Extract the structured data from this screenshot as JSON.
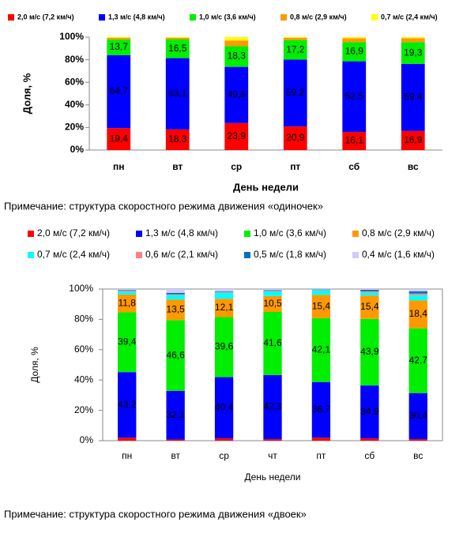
{
  "chart_data": [
    {
      "type": "stacked-bar",
      "ylabel": "Доля, %",
      "xlabel": "День недели",
      "caption": "Примечание: структура скоростного режима движения «одиночек»",
      "categories": [
        "пн",
        "вт",
        "ср",
        "пт",
        "сб",
        "вс"
      ],
      "ylim": [
        0,
        100
      ],
      "yticks": [
        {
          "value": 0,
          "label": "0%"
        },
        {
          "value": 20,
          "label": "20%"
        },
        {
          "value": 40,
          "label": "40%"
        },
        {
          "value": 60,
          "label": "60%"
        },
        {
          "value": 80,
          "label": "80%"
        },
        {
          "value": 100,
          "label": "100%"
        }
      ],
      "grid": false,
      "legend": "top",
      "series": [
        {
          "name": "2,0 м/с (7,2 км/ч)",
          "color": "#ff0000",
          "values": [
            19.4,
            18.3,
            23.9,
            20.9,
            16.1,
            16.9
          ],
          "value_labels": [
            "19,4",
            "18,3",
            "23,9",
            "20,9",
            "16,1",
            "16,9"
          ]
        },
        {
          "name": "1,3 м/с (4,8 км/ч)",
          "color": "#0000ff",
          "values": [
            64.7,
            63.1,
            49.8,
            59.2,
            62.5,
            59.4
          ],
          "value_labels": [
            "64,7",
            "63,1",
            "49,8",
            "59,2",
            "62,5",
            "59,4"
          ]
        },
        {
          "name": "1,0 м/с (3,6 км/ч)",
          "color": "#00ee00",
          "values": [
            13.7,
            16.5,
            18.3,
            17.2,
            16.9,
            19.3
          ],
          "value_labels": [
            "13,7",
            "16,5",
            "18,3",
            "17,2",
            "16,9",
            "19,3"
          ]
        },
        {
          "name": "0,8 м/с (2,9 км/ч)",
          "color": "#ff9900",
          "values": [
            1.5,
            1.5,
            5.0,
            2.0,
            3.5,
            3.5
          ]
        },
        {
          "name": "0,7 м/с (2,4 км/ч)",
          "color": "#ffff00",
          "values": [
            0.7,
            0.6,
            3.0,
            0.7,
            1.0,
            0.9
          ]
        }
      ]
    },
    {
      "type": "stacked-bar",
      "ylabel": "Доля, %",
      "xlabel": "День недели",
      "caption": "Примечание: структура скоростного режима движения «двоек»",
      "categories": [
        "пн",
        "вт",
        "ср",
        "чт",
        "пт",
        "сб",
        "вс"
      ],
      "ylim": [
        0,
        100
      ],
      "yticks": [
        {
          "value": 0,
          "label": "0%"
        },
        {
          "value": 20,
          "label": "20%"
        },
        {
          "value": 40,
          "label": "40%"
        },
        {
          "value": 60,
          "label": "60%"
        },
        {
          "value": 80,
          "label": "80%"
        },
        {
          "value": 100,
          "label": "100%"
        }
      ],
      "grid": false,
      "legend": "top",
      "series": [
        {
          "name": "2,0 м/с (7,2 км/ч)",
          "color": "#ff0000",
          "values": [
            2.0,
            0.8,
            1.5,
            1.0,
            2.0,
            1.5,
            1.0
          ]
        },
        {
          "name": "1,3 м/с (4,8 км/ч)",
          "color": "#0000ff",
          "values": [
            43.2,
            32.1,
            40.4,
            42.3,
            36.7,
            34.9,
            30.4
          ],
          "value_labels": [
            "43,2",
            "32,1",
            "40,4",
            "42,3",
            "36,7",
            "34,9",
            "30,4"
          ]
        },
        {
          "name": "1,0 м/с (3,6 км/ч)",
          "color": "#00ee00",
          "values": [
            39.4,
            46.6,
            39.6,
            41.6,
            42.1,
            43.9,
            42.7
          ],
          "value_labels": [
            "39,4",
            "46,6",
            "39,6",
            "41,6",
            "42,1",
            "43,9",
            "42,7"
          ]
        },
        {
          "name": "0,8 м/с (2,9 км/ч)",
          "color": "#ff9900",
          "values": [
            11.8,
            13.5,
            12.1,
            10.5,
            15.4,
            15.4,
            18.4
          ],
          "value_labels": [
            "11,8",
            "13,5",
            "12,1",
            "10,5",
            "15,4",
            "15,4",
            "18,4"
          ]
        },
        {
          "name": "0,7 м/с (2,4 км/ч)",
          "color": "#00ffff",
          "values": [
            2.0,
            3.0,
            4.0,
            3.0,
            3.0,
            2.0,
            3.5
          ]
        },
        {
          "name": "0,6 м/с (2,1 км/ч)",
          "color": "#ff8080",
          "values": [
            0.6,
            0.5,
            0.5,
            0.4,
            0.3,
            0.8,
            1.0
          ]
        },
        {
          "name": "0,5 м/с (1,8 км/ч)",
          "color": "#0070c0",
          "values": [
            0.4,
            1.0,
            0.4,
            0.4,
            0.2,
            1.0,
            1.5
          ]
        },
        {
          "name": "0,4 м/с (1,6 км/ч)",
          "color": "#ccccff",
          "values": [
            0.6,
            2.5,
            1.5,
            0.8,
            0.3,
            0.5,
            1.5
          ]
        }
      ]
    }
  ]
}
